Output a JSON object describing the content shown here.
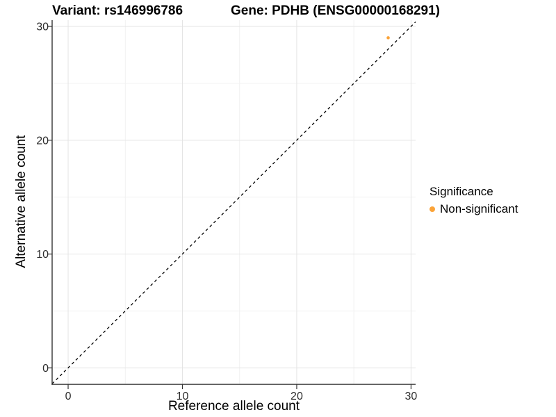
{
  "chart_data": {
    "type": "scatter",
    "title_left": "Variant: rs146996786",
    "title_right": "Gene: PDHB (ENSG00000168291)",
    "xlabel": "Reference allele count",
    "ylabel": "Alternative allele count",
    "xlim": [
      -1.4,
      30.4
    ],
    "ylim": [
      -1.45,
      30.55
    ],
    "xticks": [
      0,
      10,
      20,
      30
    ],
    "yticks": [
      0,
      10,
      20,
      30
    ],
    "xticks_minor": [
      5,
      15,
      25
    ],
    "yticks_minor": [
      5,
      15,
      25
    ],
    "grid": "major+minor, light gray on white",
    "points": [
      {
        "x": 28,
        "y": 29,
        "series": "Non-significant"
      }
    ],
    "identity_line": {
      "slope": 1,
      "intercept": 0,
      "style": "dashed",
      "color": "#000000"
    },
    "legend": {
      "title": "Significance",
      "position": "right",
      "entries": [
        {
          "label": "Non-significant",
          "color": "#FBA338"
        }
      ]
    },
    "colors": {
      "background": "#ffffff",
      "axis_line": "#333333",
      "tick_text": "#2e2e2e",
      "grid_major": "#e4e4e4",
      "grid_minor": "#f1f1f1",
      "title_text": "#000000"
    }
  }
}
